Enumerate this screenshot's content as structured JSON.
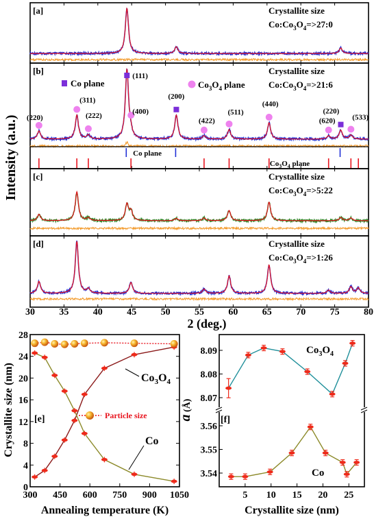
{
  "colors": {
    "red": "#e8141e",
    "blue": "#1f2fd6",
    "green": "#2f8a2a",
    "orange": "#f39a2a",
    "darkred": "#8b1a1a",
    "olive": "#8c8a2a",
    "teal": "#1f8f9a",
    "purple": "#7b2fd9",
    "pink": "#ee82ee",
    "sphere": "#f2a020",
    "marker": "#ee2a1a"
  },
  "chart_data": [
    {
      "id": "xrd",
      "type": "line",
      "xlabel": "2   (deg.)",
      "ylabel": "Intensity (a.u.)",
      "xlim": [
        30,
        80
      ],
      "xticks": [
        "30",
        "35",
        "40",
        "45",
        "50",
        "55",
        "60",
        "65",
        "70",
        "75",
        "80"
      ],
      "panels": [
        {
          "tag": "[a]",
          "title": "Crystallite size",
          "ratio": "Co:Co₃O₄=>27:0",
          "peaks": [
            {
              "pos": 44.3,
              "h": 1.0
            },
            {
              "pos": 51.6,
              "h": 0.15
            },
            {
              "pos": 75.9,
              "h": 0.12
            }
          ],
          "exp_color": "blue",
          "fit_color": "red"
        },
        {
          "tag": "[b]",
          "title": "Crystallite size",
          "ratio": "Co:Co₃O₄=>21:6",
          "peaks": [
            {
              "pos": 31.3,
              "h": 0.12
            },
            {
              "pos": 36.9,
              "h": 0.35
            },
            {
              "pos": 38.6,
              "h": 0.06
            },
            {
              "pos": 44.3,
              "h": 1.0
            },
            {
              "pos": 44.8,
              "h": 0.1
            },
            {
              "pos": 51.6,
              "h": 0.35
            },
            {
              "pos": 55.7,
              "h": 0.05
            },
            {
              "pos": 59.4,
              "h": 0.14
            },
            {
              "pos": 65.3,
              "h": 0.24
            },
            {
              "pos": 74.1,
              "h": 0.05
            },
            {
              "pos": 75.9,
              "h": 0.13
            },
            {
              "pos": 77.4,
              "h": 0.06
            }
          ],
          "exp_color": "blue",
          "fit_color": "red",
          "legend": {
            "co": "Co plane",
            "co3o4": "Co₃O₄ plane"
          },
          "annotations": [
            {
              "text": "(220)",
              "x": 31.3
            },
            {
              "text": "(311)",
              "x": 36.9
            },
            {
              "text": "(222)",
              "x": 38.6
            },
            {
              "text": "(111)",
              "x": 44.3
            },
            {
              "text": "(400)",
              "x": 44.9
            },
            {
              "text": "(200)",
              "x": 51.6
            },
            {
              "text": "(422)",
              "x": 55.7
            },
            {
              "text": "(511)",
              "x": 59.4
            },
            {
              "text": "(440)",
              "x": 65.3
            },
            {
              "text": "(620)",
              "x": 74.1
            },
            {
              "text": "(220)",
              "x": 75.9
            },
            {
              "text": "(533)",
              "x": 77.4
            }
          ],
          "ref_co_label": "Co  plane",
          "ref_co3o4_label": "Co₃O₄  plane",
          "ref_co": [
            44.2,
            51.5,
            75.8
          ],
          "ref_co3o4": [
            31.3,
            36.9,
            38.6,
            44.9,
            55.7,
            59.4,
            65.3,
            74.1,
            77.4,
            78.5
          ]
        },
        {
          "tag": "[c]",
          "title": "Crystallite size",
          "ratio": "Co:Co₃O₄=>5:22",
          "peaks": [
            {
              "pos": 31.3,
              "h": 0.14
            },
            {
              "pos": 36.9,
              "h": 0.62
            },
            {
              "pos": 38.6,
              "h": 0.06
            },
            {
              "pos": 44.3,
              "h": 0.35
            },
            {
              "pos": 44.9,
              "h": 0.2
            },
            {
              "pos": 51.6,
              "h": 0.05
            },
            {
              "pos": 55.7,
              "h": 0.06
            },
            {
              "pos": 59.4,
              "h": 0.22
            },
            {
              "pos": 65.3,
              "h": 0.4
            },
            {
              "pos": 75.9,
              "h": 0.07
            },
            {
              "pos": 77.4,
              "h": 0.06
            }
          ],
          "exp_color": "green",
          "fit_color": "red"
        },
        {
          "tag": "[d]",
          "title": "Crystallite size",
          "ratio": "Co:Co₃O₄=>1:26",
          "peaks": [
            {
              "pos": 31.3,
              "h": 0.22
            },
            {
              "pos": 36.9,
              "h": 0.95
            },
            {
              "pos": 38.6,
              "h": 0.08
            },
            {
              "pos": 44.9,
              "h": 0.2
            },
            {
              "pos": 55.7,
              "h": 0.08
            },
            {
              "pos": 59.4,
              "h": 0.32
            },
            {
              "pos": 65.3,
              "h": 0.52
            },
            {
              "pos": 74.1,
              "h": 0.06
            },
            {
              "pos": 77.4,
              "h": 0.12
            },
            {
              "pos": 78.5,
              "h": 0.1
            }
          ],
          "exp_color": "blue",
          "fit_color": "red"
        }
      ]
    },
    {
      "id": "anneal",
      "type": "line",
      "tag": "[e]",
      "xlabel": "Annealing temperature (K)",
      "ylabel": "Crystallite size (nm)",
      "xlim": [
        300,
        1050
      ],
      "ylim": [
        0,
        28
      ],
      "xticks": [
        "300",
        "450",
        "600",
        "750",
        "900",
        "1050"
      ],
      "yticks": [
        "0",
        "4",
        "8",
        "12",
        "16",
        "20",
        "24",
        "28"
      ],
      "series": [
        {
          "name": "Co₃O₄",
          "color": "darkred",
          "x": [
            323,
            373,
            423,
            473,
            523,
            573,
            673,
            823,
            1023
          ],
          "y": [
            1.8,
            3.0,
            5.6,
            8.6,
            12.2,
            17.0,
            21.8,
            24.3,
            25.7
          ]
        },
        {
          "name": "Co",
          "color": "olive",
          "x": [
            323,
            373,
            423,
            473,
            523,
            573,
            673,
            823,
            1023
          ],
          "y": [
            24.6,
            23.8,
            20.5,
            17.6,
            14.0,
            9.8,
            5.0,
            2.3,
            1.0
          ]
        },
        {
          "name": "Particle size",
          "color": "red",
          "x": [
            323,
            373,
            423,
            473,
            523,
            573,
            673,
            823,
            1023
          ],
          "y": [
            26.4,
            26.6,
            26.3,
            26.2,
            26.3,
            26.4,
            26.5,
            26.4,
            26.3
          ]
        }
      ],
      "labels": {
        "co3o4": "Co₃O₄",
        "co": "Co",
        "particle": "Particle size"
      }
    },
    {
      "id": "lattice",
      "type": "line",
      "tag": "[f]",
      "xlabel": "Crystallite size (nm)",
      "ylabel": "a (Å)",
      "xlim": [
        0,
        28
      ],
      "xticks": [
        "5",
        "10",
        "15",
        "20",
        "25"
      ],
      "upper_yticks": [
        "8.07",
        "8.08",
        "8.09"
      ],
      "lower_yticks": [
        "3.54",
        "3.55",
        "3.56"
      ],
      "series": [
        {
          "name": "Co₃O₄",
          "color": "teal",
          "x": [
            1.8,
            5.6,
            8.6,
            12.2,
            17.0,
            21.8,
            24.3,
            25.7
          ],
          "y": [
            8.074,
            8.088,
            8.091,
            8.0895,
            8.081,
            8.0715,
            8.0845,
            8.093
          ]
        },
        {
          "name": "Co",
          "color": "olive",
          "x": [
            2.3,
            5.0,
            9.8,
            14.0,
            17.6,
            20.5,
            23.8,
            24.6,
            26.5
          ],
          "y": [
            3.5385,
            3.5385,
            3.5405,
            3.5485,
            3.5595,
            3.5485,
            3.5445,
            3.5395,
            3.5445
          ]
        }
      ],
      "labels": {
        "co3o4": "Co₃O₄",
        "co": "Co"
      }
    }
  ]
}
